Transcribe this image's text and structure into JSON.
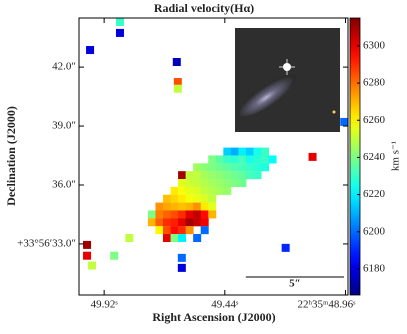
{
  "chart_data": {
    "type": "heatmap",
    "title": "Radial velocity(Hα)",
    "x_label": "Right Ascension (J2000)",
    "y_label": "Declination (J2000)",
    "colorbar_label": "km s⁻¹",
    "colormap": "jet",
    "xlim": [
      50.02,
      48.95
    ],
    "ylim": [
      30.4,
      44.5
    ],
    "xticks": [
      {
        "value": 49.92,
        "label": "49.92ˢ"
      },
      {
        "value": 49.44,
        "label": "49.44ˢ"
      },
      {
        "value": 48.96,
        "label": "22ʰ35ᵐ48.96ˢ"
      }
    ],
    "yticks": [
      {
        "value": 33,
        "label": "+33°56′33.0″"
      },
      {
        "value": 36,
        "label": "36.0″"
      },
      {
        "value": 39,
        "label": "39.0″"
      },
      {
        "value": 42,
        "label": "42.0″"
      }
    ],
    "clim": [
      6166,
      6315
    ],
    "cticks": [
      6180,
      6200,
      6220,
      6240,
      6260,
      6280,
      6300
    ],
    "scale_bar": {
      "length": 5,
      "label": "5″"
    },
    "cells": [
      [
        49.43,
        37.7,
        6215
      ],
      [
        49.4,
        37.7,
        6210
      ],
      [
        49.37,
        37.7,
        6220
      ],
      [
        49.34,
        37.7,
        6215
      ],
      [
        49.31,
        37.7,
        6225
      ],
      [
        49.28,
        37.7,
        6230
      ],
      [
        49.49,
        37.3,
        6240
      ],
      [
        49.46,
        37.3,
        6235
      ],
      [
        49.43,
        37.3,
        6230
      ],
      [
        49.4,
        37.3,
        6228
      ],
      [
        49.37,
        37.3,
        6232
      ],
      [
        49.34,
        37.3,
        6225
      ],
      [
        49.31,
        37.3,
        6228
      ],
      [
        49.28,
        37.3,
        6230
      ],
      [
        49.25,
        37.3,
        6222
      ],
      [
        49.55,
        36.9,
        6245
      ],
      [
        49.52,
        36.9,
        6242
      ],
      [
        49.49,
        36.9,
        6240
      ],
      [
        49.46,
        36.9,
        6238
      ],
      [
        49.43,
        36.9,
        6236
      ],
      [
        49.4,
        36.9,
        6234
      ],
      [
        49.37,
        36.9,
        6232
      ],
      [
        49.34,
        36.9,
        6230
      ],
      [
        49.31,
        36.9,
        6228
      ],
      [
        49.28,
        36.9,
        6226
      ],
      [
        49.61,
        36.5,
        6310
      ],
      [
        49.58,
        36.5,
        6250
      ],
      [
        49.55,
        36.5,
        6250
      ],
      [
        49.52,
        36.5,
        6246
      ],
      [
        49.49,
        36.5,
        6244
      ],
      [
        49.46,
        36.5,
        6242
      ],
      [
        49.43,
        36.5,
        6240
      ],
      [
        49.4,
        36.5,
        6238
      ],
      [
        49.37,
        36.5,
        6236
      ],
      [
        49.34,
        36.5,
        6232
      ],
      [
        49.31,
        36.5,
        6230
      ],
      [
        49.61,
        36.1,
        6255
      ],
      [
        49.58,
        36.1,
        6252
      ],
      [
        49.55,
        36.1,
        6250
      ],
      [
        49.52,
        36.1,
        6248
      ],
      [
        49.49,
        36.1,
        6246
      ],
      [
        49.46,
        36.1,
        6244
      ],
      [
        49.43,
        36.1,
        6242
      ],
      [
        49.4,
        36.1,
        6240
      ],
      [
        49.37,
        36.1,
        6238
      ],
      [
        49.64,
        35.7,
        6262
      ],
      [
        49.61,
        35.7,
        6258
      ],
      [
        49.58,
        35.7,
        6255
      ],
      [
        49.55,
        35.7,
        6254
      ],
      [
        49.52,
        35.7,
        6250
      ],
      [
        49.49,
        35.7,
        6248
      ],
      [
        49.46,
        35.7,
        6246
      ],
      [
        49.43,
        35.7,
        6244
      ],
      [
        49.67,
        35.3,
        6268
      ],
      [
        49.64,
        35.3,
        6265
      ],
      [
        49.61,
        35.3,
        6262
      ],
      [
        49.58,
        35.3,
        6258
      ],
      [
        49.55,
        35.3,
        6256
      ],
      [
        49.52,
        35.3,
        6254
      ],
      [
        49.49,
        35.3,
        6250
      ],
      [
        49.7,
        34.9,
        6275
      ],
      [
        49.67,
        34.9,
        6272
      ],
      [
        49.64,
        34.9,
        6270
      ],
      [
        49.61,
        34.9,
        6268
      ],
      [
        49.58,
        34.9,
        6270
      ],
      [
        49.55,
        34.9,
        6275
      ],
      [
        49.52,
        34.9,
        6262
      ],
      [
        49.49,
        34.9,
        6255
      ],
      [
        49.73,
        34.5,
        6240
      ],
      [
        49.7,
        34.5,
        6278
      ],
      [
        49.67,
        34.5,
        6282
      ],
      [
        49.64,
        34.5,
        6285
      ],
      [
        49.61,
        34.5,
        6290
      ],
      [
        49.58,
        34.5,
        6300
      ],
      [
        49.55,
        34.5,
        6305
      ],
      [
        49.52,
        34.5,
        6295
      ],
      [
        49.49,
        34.5,
        6270
      ],
      [
        49.73,
        34.1,
        6270
      ],
      [
        49.7,
        34.1,
        6282
      ],
      [
        49.67,
        34.1,
        6290
      ],
      [
        49.64,
        34.1,
        6292
      ],
      [
        49.61,
        34.1,
        6300
      ],
      [
        49.58,
        34.1,
        6310
      ],
      [
        49.55,
        34.1,
        6305
      ],
      [
        49.52,
        34.1,
        6298
      ],
      [
        49.7,
        33.7,
        6260
      ],
      [
        49.67,
        33.7,
        6285
      ],
      [
        49.64,
        33.7,
        6295
      ],
      [
        49.61,
        33.7,
        6290
      ],
      [
        49.58,
        33.7,
        6275
      ],
      [
        49.52,
        33.7,
        6200
      ],
      [
        49.67,
        33.3,
        6300
      ],
      [
        49.64,
        33.3,
        6240
      ],
      [
        49.61,
        33.3,
        6220
      ],
      [
        49.55,
        33.3,
        6200
      ],
      [
        49.976,
        42.87,
        6180
      ],
      [
        49.857,
        43.74,
        6180
      ],
      [
        49.857,
        44.3,
        6230
      ],
      [
        49.631,
        42.26,
        6175
      ],
      [
        49.627,
        41.24,
        6285
      ],
      [
        49.627,
        40.9,
        6250
      ],
      [
        49.988,
        32.95,
        6310
      ],
      [
        49.988,
        32.4,
        6300
      ],
      [
        49.968,
        31.9,
        6250
      ],
      [
        49.611,
        32.29,
        6200
      ],
      [
        49.611,
        31.78,
        6180
      ],
      [
        49.198,
        32.8,
        6190
      ],
      [
        49.091,
        37.43,
        6300
      ],
      [
        48.965,
        39.21,
        6200
      ],
      [
        49.82,
        33.3,
        6250
      ],
      [
        49.88,
        32.4,
        6240
      ]
    ]
  }
}
